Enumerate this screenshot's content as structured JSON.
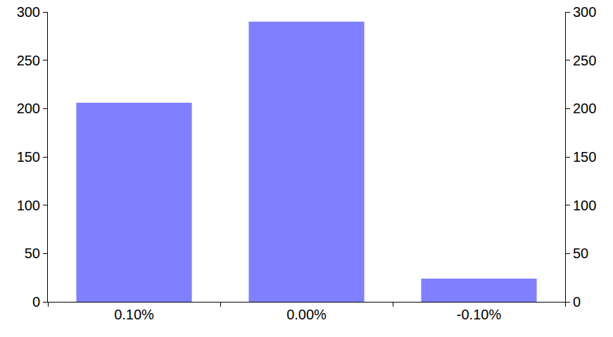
{
  "chart_data": {
    "type": "bar",
    "categories": [
      "0.10%",
      "0.00%",
      "-0.10%"
    ],
    "values": [
      206,
      290,
      24
    ],
    "color": "#8080ff",
    "ylim": [
      0,
      300
    ],
    "yticks": [
      0,
      50,
      100,
      150,
      200,
      250,
      300
    ],
    "grid": false
  }
}
